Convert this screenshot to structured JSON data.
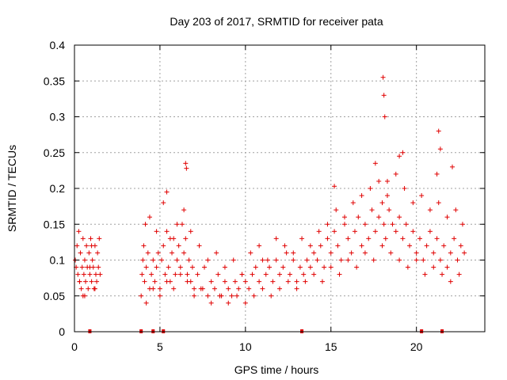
{
  "chart_data": {
    "type": "scatter",
    "title": "Day 203 of 2017, SRMTID for receiver pata",
    "xlabel": "GPS time / hours",
    "ylabel": "SRMTID / TECUs",
    "xlim": [
      0,
      24
    ],
    "ylim": [
      0,
      0.4
    ],
    "xticks": [
      0,
      5,
      10,
      15,
      20
    ],
    "xtick_labels": [
      "0",
      "5",
      "10",
      "15",
      "20"
    ],
    "yticks": [
      0,
      0.05,
      0.1,
      0.15,
      0.2,
      0.25,
      0.3,
      0.35,
      0.4
    ],
    "ytick_labels": [
      "0",
      "0.05",
      "0.1",
      "0.15",
      "0.2",
      "0.25",
      "0.3",
      "0.35",
      "0.4"
    ],
    "grid": true,
    "marker": "plus",
    "color": "#e00000",
    "series": [
      {
        "name": "SRMTID",
        "x": [
          0.05,
          0.1,
          0.15,
          0.2,
          0.25,
          0.3,
          0.35,
          0.4,
          0.45,
          0.5,
          0.55,
          0.6,
          0.65,
          0.7,
          0.75,
          0.8,
          0.85,
          0.9,
          0.95,
          1.0,
          1.05,
          1.1,
          1.15,
          1.2,
          1.25,
          1.3,
          1.35,
          1.4,
          1.45,
          1.5,
          3.9,
          3.95,
          4.0,
          4.05,
          4.1,
          4.15,
          4.2,
          4.3,
          4.4,
          4.5,
          4.6,
          4.7,
          4.8,
          4.9,
          5.0,
          5.1,
          5.2,
          5.3,
          5.4,
          5.5,
          5.6,
          5.7,
          5.8,
          5.9,
          6.0,
          6.1,
          6.2,
          6.3,
          6.4,
          6.5,
          6.6,
          6.7,
          6.8,
          6.9,
          7.0,
          7.2,
          7.4,
          7.6,
          7.8,
          8.0,
          8.2,
          8.4,
          8.6,
          8.8,
          9.0,
          9.2,
          9.4,
          9.6,
          9.8,
          10.0,
          10.2,
          10.4,
          10.6,
          10.8,
          11.0,
          11.2,
          11.4,
          11.6,
          11.8,
          12.0,
          12.2,
          12.4,
          12.6,
          12.8,
          13.0,
          13.2,
          13.4,
          13.6,
          13.8,
          14.0,
          14.2,
          14.4,
          14.6,
          14.8,
          15.0,
          15.2,
          15.4,
          15.6,
          15.8,
          16.0,
          16.2,
          16.4,
          16.6,
          16.8,
          17.0,
          17.2,
          17.4,
          17.6,
          17.8,
          18.0,
          18.1,
          18.2,
          18.4,
          18.6,
          18.8,
          19.0,
          19.2,
          19.4,
          19.6,
          19.8,
          20.0,
          20.2,
          20.4,
          20.6,
          20.8,
          21.0,
          21.2,
          21.4,
          21.6,
          21.8,
          22.0,
          22.2,
          22.4,
          22.6,
          22.8,
          0.3,
          0.6,
          0.9,
          1.2,
          4.2,
          4.6,
          5.0,
          5.4,
          5.8,
          6.2,
          6.6,
          7.0,
          7.5,
          8.0,
          8.5,
          9.0,
          9.5,
          10.0,
          10.5,
          11.0,
          11.5,
          12.0,
          12.5,
          13.0,
          13.5,
          14.0,
          14.5,
          15.0,
          15.5,
          16.0,
          16.5,
          17.0,
          17.5,
          18.0,
          18.5,
          19.0,
          19.5,
          20.0,
          20.5,
          21.0,
          21.5,
          22.0,
          22.5,
          0.5,
          1.0,
          4.4,
          4.8,
          5.2,
          5.6,
          6.0,
          6.4,
          6.8,
          7.3,
          7.8,
          8.3,
          8.8,
          9.3,
          9.8,
          10.3,
          10.8,
          11.3,
          11.8,
          12.3,
          12.8,
          13.3,
          13.8,
          14.3,
          14.8,
          15.3,
          15.8,
          16.3,
          16.8,
          17.3,
          17.8,
          18.3,
          18.8,
          19.3,
          19.8,
          20.3,
          20.8,
          21.3,
          21.8,
          22.3,
          22.7,
          18.05,
          18.1,
          18.15,
          19.2,
          21.3,
          21.4,
          6.5,
          6.55,
          19.0,
          21.2,
          17.6,
          18.3,
          15.2,
          22.1,
          5.4
        ],
        "y": [
          0.1,
          0.09,
          0.12,
          0.08,
          0.14,
          0.07,
          0.11,
          0.06,
          0.09,
          0.05,
          0.08,
          0.1,
          0.07,
          0.12,
          0.09,
          0.06,
          0.11,
          0.08,
          0.13,
          0.07,
          0.1,
          0.09,
          0.06,
          0.12,
          0.08,
          0.07,
          0.11,
          0.09,
          0.13,
          0.08,
          0.05,
          0.08,
          0.1,
          0.12,
          0.07,
          0.15,
          0.09,
          0.11,
          0.06,
          0.08,
          0.1,
          0.07,
          0.09,
          0.11,
          0.06,
          0.1,
          0.12,
          0.08,
          0.14,
          0.09,
          0.07,
          0.11,
          0.13,
          0.08,
          0.1,
          0.12,
          0.09,
          0.15,
          0.11,
          0.13,
          0.08,
          0.1,
          0.07,
          0.09,
          0.06,
          0.08,
          0.06,
          0.09,
          0.05,
          0.07,
          0.06,
          0.08,
          0.05,
          0.07,
          0.06,
          0.05,
          0.07,
          0.06,
          0.08,
          0.07,
          0.06,
          0.08,
          0.09,
          0.07,
          0.1,
          0.08,
          0.09,
          0.07,
          0.1,
          0.08,
          0.09,
          0.11,
          0.08,
          0.1,
          0.07,
          0.09,
          0.08,
          0.1,
          0.09,
          0.11,
          0.1,
          0.12,
          0.09,
          0.13,
          0.11,
          0.14,
          0.12,
          0.1,
          0.15,
          0.13,
          0.11,
          0.14,
          0.16,
          0.12,
          0.15,
          0.13,
          0.17,
          0.14,
          0.16,
          0.18,
          0.15,
          0.13,
          0.17,
          0.15,
          0.14,
          0.16,
          0.13,
          0.15,
          0.12,
          0.14,
          0.11,
          0.13,
          0.1,
          0.12,
          0.14,
          0.11,
          0.13,
          0.1,
          0.12,
          0.09,
          0.11,
          0.13,
          0.1,
          0.12,
          0.11,
          0.07,
          0.05,
          0.09,
          0.06,
          0.04,
          0.06,
          0.05,
          0.07,
          0.06,
          0.08,
          0.07,
          0.05,
          0.06,
          0.04,
          0.05,
          0.04,
          0.05,
          0.04,
          0.05,
          0.06,
          0.05,
          0.06,
          0.07,
          0.06,
          0.07,
          0.08,
          0.07,
          0.09,
          0.08,
          0.1,
          0.09,
          0.11,
          0.1,
          0.12,
          0.11,
          0.1,
          0.09,
          0.1,
          0.08,
          0.09,
          0.08,
          0.07,
          0.08,
          0.13,
          0.12,
          0.16,
          0.14,
          0.18,
          0.13,
          0.15,
          0.17,
          0.14,
          0.12,
          0.1,
          0.11,
          0.09,
          0.1,
          0.08,
          0.11,
          0.12,
          0.1,
          0.13,
          0.12,
          0.11,
          0.13,
          0.12,
          0.14,
          0.15,
          0.17,
          0.16,
          0.18,
          0.19,
          0.2,
          0.21,
          0.19,
          0.22,
          0.2,
          0.18,
          0.19,
          0.17,
          0.18,
          0.16,
          0.17,
          0.15,
          0.355,
          0.33,
          0.3,
          0.25,
          0.28,
          0.255,
          0.235,
          0.228,
          0.245,
          0.22,
          0.235,
          0.21,
          0.203,
          0.23,
          0.195
        ]
      }
    ],
    "baseline_marks_x": [
      0.9,
      3.9,
      4.6,
      5.2,
      13.3,
      20.3,
      21.5
    ]
  }
}
